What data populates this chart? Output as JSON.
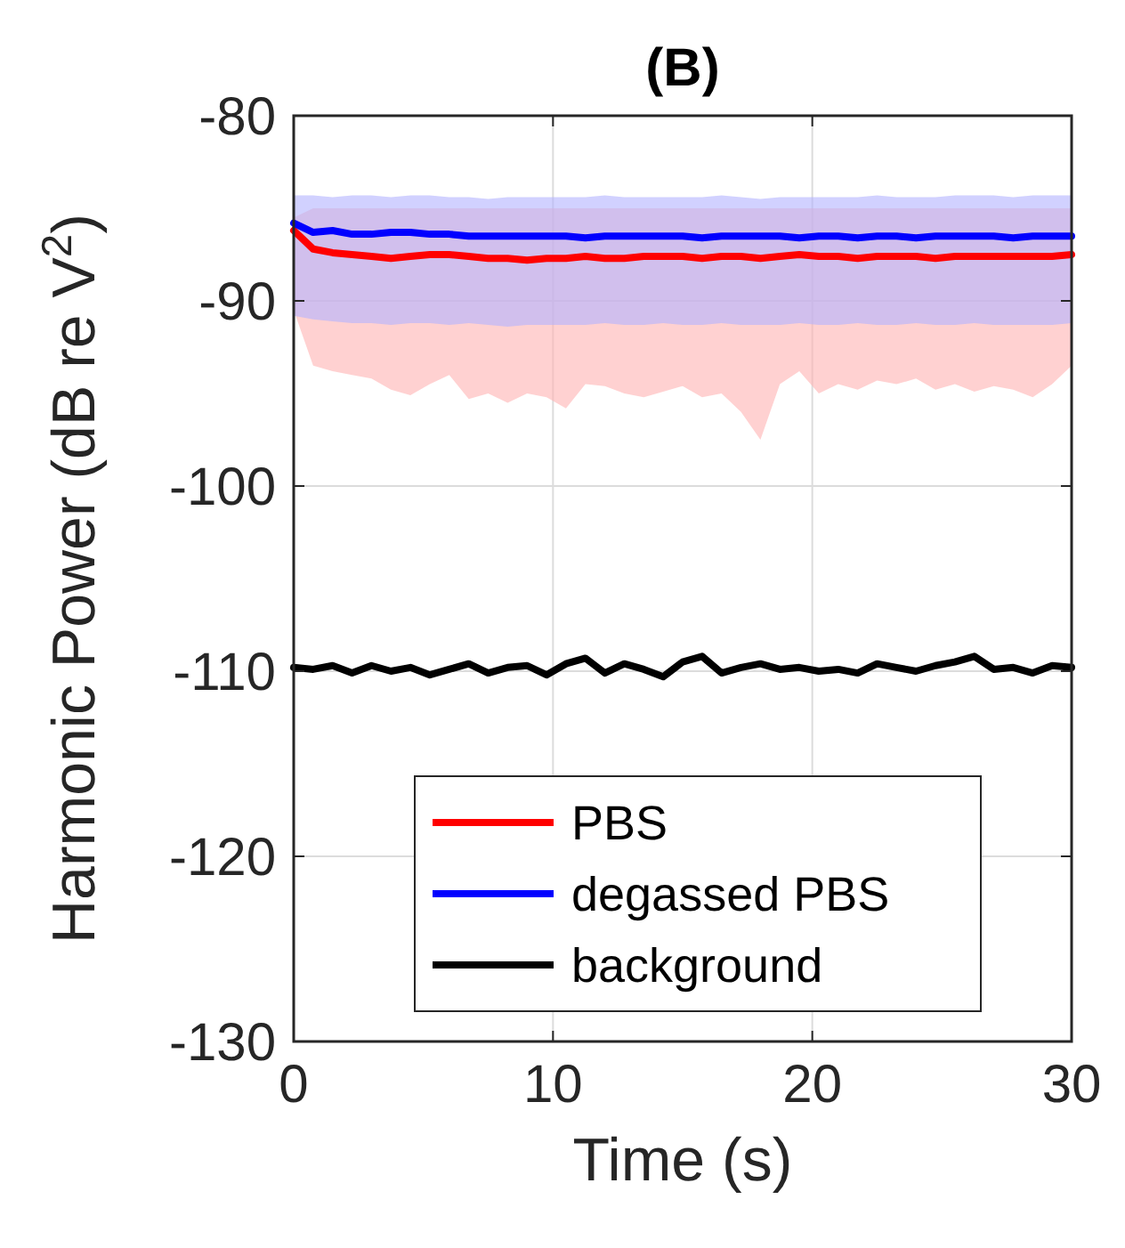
{
  "chart_data": {
    "type": "line",
    "title": "(B)",
    "xlabel": "Time (s)",
    "ylabel": "Harmonic Power (dB re V$^{2}$)",
    "x": [
      0,
      0.75,
      1.5,
      2.25,
      3,
      3.75,
      4.5,
      5.25,
      6,
      6.75,
      7.5,
      8.25,
      9,
      9.75,
      10.5,
      11.25,
      12,
      12.75,
      13.5,
      14.25,
      15,
      15.75,
      16.5,
      17.25,
      18,
      18.75,
      19.5,
      20.25,
      21,
      21.75,
      22.5,
      23.25,
      24,
      24.75,
      25.5,
      26.25,
      27,
      27.75,
      28.5,
      29.25,
      30
    ],
    "series": [
      {
        "name": "PBS",
        "color": "#ff0000",
        "values": [
          -86.2,
          -87.2,
          -87.4,
          -87.5,
          -87.6,
          -87.7,
          -87.6,
          -87.5,
          -87.5,
          -87.6,
          -87.7,
          -87.7,
          -87.8,
          -87.7,
          -87.7,
          -87.6,
          -87.7,
          -87.7,
          -87.6,
          -87.6,
          -87.6,
          -87.7,
          -87.6,
          -87.6,
          -87.7,
          -87.6,
          -87.5,
          -87.6,
          -87.6,
          -87.7,
          -87.6,
          -87.6,
          -87.6,
          -87.7,
          -87.6,
          -87.6,
          -87.6,
          -87.6,
          -87.6,
          -87.6,
          -87.5
        ],
        "upper": [
          -85.5,
          -85,
          -85,
          -85,
          -85,
          -85,
          -85,
          -85,
          -85,
          -85,
          -85,
          -85,
          -85,
          -85,
          -85,
          -85,
          -85,
          -85,
          -85,
          -85,
          -85,
          -85,
          -85,
          -85,
          -85,
          -85,
          -85,
          -85,
          -85,
          -85,
          -85,
          -85,
          -85,
          -85,
          -85,
          -85,
          -85,
          -85,
          -85,
          -85,
          -85
        ],
        "lower": [
          -90.5,
          -93.5,
          -93.8,
          -94,
          -94.2,
          -94.8,
          -95.1,
          -94.5,
          -94,
          -95.3,
          -95,
          -95.5,
          -95,
          -95.2,
          -95.8,
          -94.5,
          -94.6,
          -95,
          -95.2,
          -94.9,
          -94.6,
          -95.2,
          -95,
          -96,
          -97.5,
          -94.5,
          -93.8,
          -95,
          -94.5,
          -94.8,
          -94.3,
          -94.5,
          -94.2,
          -94.8,
          -94.5,
          -94.9,
          -94.6,
          -94.8,
          -95.2,
          -94.5,
          -93.5
        ]
      },
      {
        "name": "degassed PBS",
        "color": "#0000ff",
        "values": [
          -85.8,
          -86.3,
          -86.2,
          -86.4,
          -86.4,
          -86.3,
          -86.3,
          -86.4,
          -86.4,
          -86.5,
          -86.5,
          -86.5,
          -86.5,
          -86.5,
          -86.5,
          -86.6,
          -86.5,
          -86.5,
          -86.5,
          -86.5,
          -86.5,
          -86.6,
          -86.5,
          -86.5,
          -86.5,
          -86.5,
          -86.6,
          -86.5,
          -86.5,
          -86.6,
          -86.5,
          -86.5,
          -86.6,
          -86.5,
          -86.5,
          -86.5,
          -86.5,
          -86.6,
          -86.5,
          -86.5,
          -86.5
        ],
        "upper": [
          -84.3,
          -84.3,
          -84.4,
          -84.3,
          -84.3,
          -84.4,
          -84.3,
          -84.3,
          -84.4,
          -84.4,
          -84.5,
          -84.4,
          -84.4,
          -84.4,
          -84.4,
          -84.4,
          -84.3,
          -84.4,
          -84.4,
          -84.4,
          -84.4,
          -84.4,
          -84.3,
          -84.4,
          -84.5,
          -84.4,
          -84.4,
          -84.4,
          -84.4,
          -84.4,
          -84.3,
          -84.4,
          -84.4,
          -84.4,
          -84.3,
          -84.3,
          -84.3,
          -84.4,
          -84.3,
          -84.3,
          -84.3
        ],
        "lower": [
          -90.8,
          -91,
          -91.1,
          -91.2,
          -91.2,
          -91.3,
          -91.2,
          -91.2,
          -91.3,
          -91.2,
          -91.3,
          -91.4,
          -91.3,
          -91.3,
          -91.3,
          -91.3,
          -91.2,
          -91.3,
          -91.3,
          -91.2,
          -91.3,
          -91.3,
          -91.2,
          -91.3,
          -91.3,
          -91.3,
          -91.2,
          -91.3,
          -91.3,
          -91.2,
          -91.3,
          -91.3,
          -91.2,
          -91.3,
          -91.3,
          -91.2,
          -91.3,
          -91.3,
          -91.3,
          -91.3,
          -91.2
        ]
      },
      {
        "name": "background",
        "color": "#000000",
        "values": [
          -109.8,
          -109.9,
          -109.7,
          -110.1,
          -109.7,
          -110,
          -109.8,
          -110.2,
          -109.9,
          -109.6,
          -110.1,
          -109.8,
          -109.7,
          -110.2,
          -109.6,
          -109.3,
          -110.1,
          -109.6,
          -109.9,
          -110.3,
          -109.5,
          -109.2,
          -110.1,
          -109.8,
          -109.6,
          -109.9,
          -109.8,
          -110,
          -109.9,
          -110.1,
          -109.6,
          -109.8,
          -110,
          -109.7,
          -109.5,
          -109.2,
          -109.9,
          -109.8,
          -110.1,
          -109.7,
          -109.8
        ]
      }
    ],
    "xlim": [
      0,
      30
    ],
    "xticks": [
      0,
      10,
      20,
      30
    ],
    "ylim": [
      -130,
      -80
    ],
    "yticks": [
      -130,
      -120,
      -110,
      -100,
      -90,
      -80
    ],
    "grid": true,
    "legend": "bottom",
    "line_style": "solid"
  }
}
